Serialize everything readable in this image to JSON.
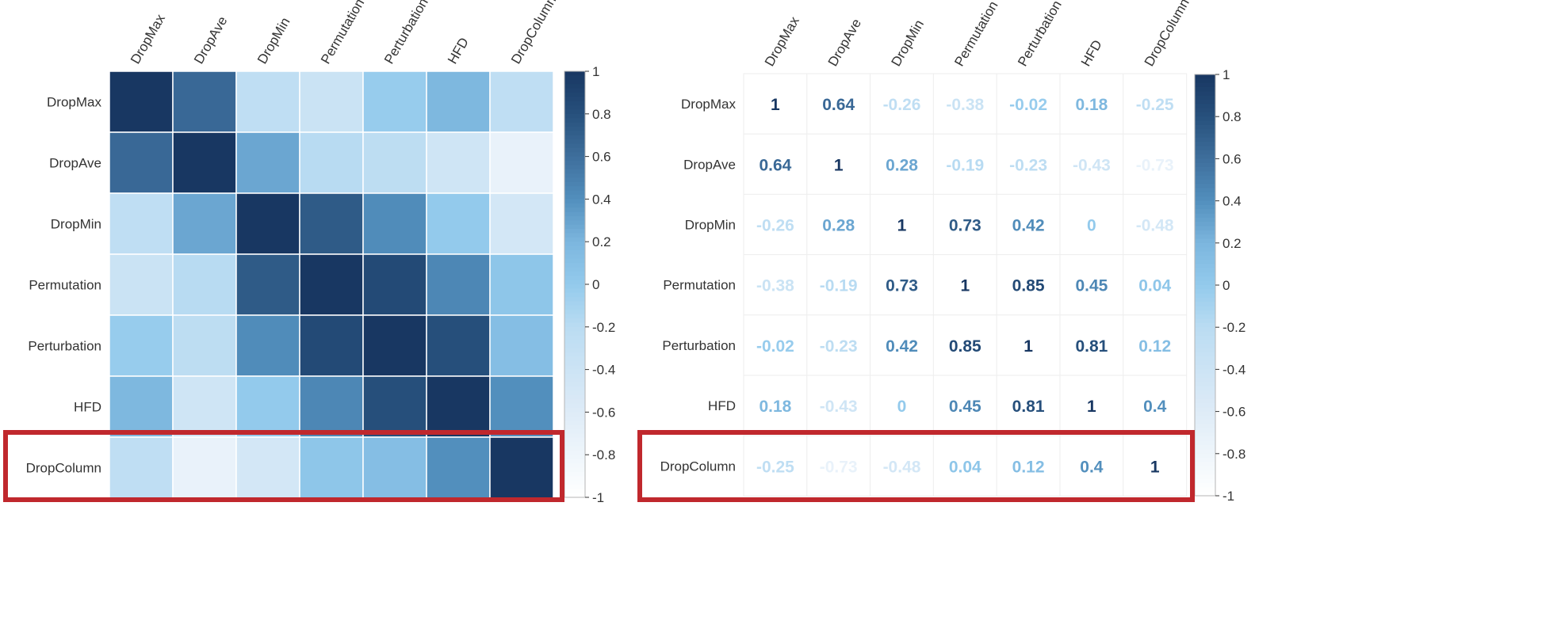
{
  "chart_data": [
    {
      "type": "heatmap",
      "title": "",
      "variables": [
        "DropMax",
        "DropAve",
        "DropMin",
        "Permutation",
        "Perturbation",
        "HFD",
        "DropColumn"
      ],
      "matrix": [
        [
          1,
          0.64,
          -0.26,
          -0.38,
          -0.02,
          0.18,
          -0.25
        ],
        [
          0.64,
          1,
          0.28,
          -0.19,
          -0.23,
          -0.43,
          -0.73
        ],
        [
          -0.26,
          0.28,
          1,
          0.73,
          0.42,
          0,
          -0.48
        ],
        [
          -0.38,
          -0.19,
          0.73,
          1,
          0.85,
          0.45,
          0.04
        ],
        [
          -0.02,
          -0.23,
          0.42,
          0.85,
          1,
          0.81,
          0.12
        ],
        [
          0.18,
          -0.43,
          0,
          0.45,
          0.81,
          1,
          0.4
        ],
        [
          -0.25,
          -0.73,
          -0.48,
          0.04,
          0.12,
          0.4,
          1
        ]
      ],
      "display": "color",
      "colorbar": {
        "range": [
          -1,
          1
        ],
        "ticks": [
          "1",
          "0.8",
          "0.6",
          "0.4",
          "0.2",
          "0",
          "-0.2",
          "-0.4",
          "-0.6",
          "-0.8",
          "-1"
        ]
      },
      "highlighted_row": "DropColumn",
      "highlight_color": "#c0282d"
    },
    {
      "type": "heatmap",
      "title": "",
      "variables": [
        "DropMax",
        "DropAve",
        "DropMin",
        "Permutation",
        "Perturbation",
        "HFD",
        "DropColumn"
      ],
      "matrix": [
        [
          1,
          0.64,
          -0.26,
          -0.38,
          -0.02,
          0.18,
          -0.25
        ],
        [
          0.64,
          1,
          0.28,
          -0.19,
          -0.23,
          -0.43,
          -0.73
        ],
        [
          -0.26,
          0.28,
          1,
          0.73,
          0.42,
          0,
          -0.48
        ],
        [
          -0.38,
          -0.19,
          0.73,
          1,
          0.85,
          0.45,
          0.04
        ],
        [
          -0.02,
          -0.23,
          0.42,
          0.85,
          1,
          0.81,
          0.12
        ],
        [
          0.18,
          -0.43,
          0,
          0.45,
          0.81,
          1,
          0.4
        ],
        [
          -0.25,
          -0.73,
          -0.48,
          0.04,
          0.12,
          0.4,
          1
        ]
      ],
      "display": "number",
      "colorbar": {
        "range": [
          -1,
          1
        ],
        "ticks": [
          "1",
          "0.8",
          "0.6",
          "0.4",
          "0.2",
          "0",
          "-0.2",
          "-0.4",
          "-0.6",
          "-0.8",
          "-1"
        ]
      },
      "highlighted_row": "DropColumn",
      "highlight_color": "#c0282d"
    }
  ]
}
